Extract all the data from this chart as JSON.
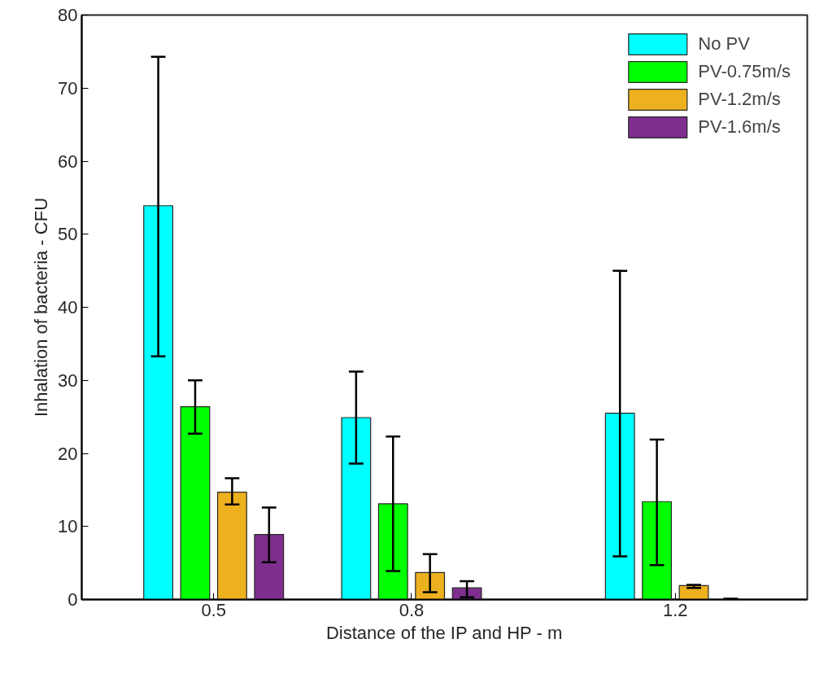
{
  "chart_data": {
    "type": "bar",
    "xlabel": "Distance of the IP and HP - m",
    "ylabel": "Inhalation of bacteria - CFU",
    "x": [
      0.5,
      0.8,
      1.2
    ],
    "xlim": [
      0.3,
      1.4
    ],
    "xticks": [
      0.5,
      0.8,
      1.2
    ],
    "ylim": [
      0,
      80
    ],
    "yticks": [
      0,
      10,
      20,
      30,
      40,
      50,
      60,
      70,
      80
    ],
    "grid": false,
    "legend": "top right",
    "series": [
      {
        "name": "No PV",
        "color": "#00ffff",
        "values": [
          53.9,
          24.9,
          25.5
        ],
        "errors": [
          [
            33.3,
            74.3
          ],
          [
            18.6,
            31.2
          ],
          [
            5.9,
            45.0
          ]
        ]
      },
      {
        "name": "PV-0.75m/s",
        "color": "#00ff00",
        "values": [
          26.4,
          13.1,
          13.4
        ],
        "errors": [
          [
            22.7,
            30.0
          ],
          [
            3.9,
            22.3
          ],
          [
            4.7,
            21.9
          ]
        ]
      },
      {
        "name": "PV-1.2m/s",
        "color": "#edb120",
        "values": [
          14.7,
          3.7,
          1.9
        ],
        "errors": [
          [
            13.0,
            16.6
          ],
          [
            1.0,
            6.2
          ],
          [
            1.6,
            2.0
          ]
        ]
      },
      {
        "name": "PV-1.6m/s",
        "color": "#7e2f8e",
        "values": [
          8.9,
          1.6,
          0
        ],
        "errors": [
          [
            5.1,
            12.6
          ],
          [
            0.3,
            2.5
          ],
          [
            0,
            0.1
          ]
        ]
      }
    ]
  }
}
